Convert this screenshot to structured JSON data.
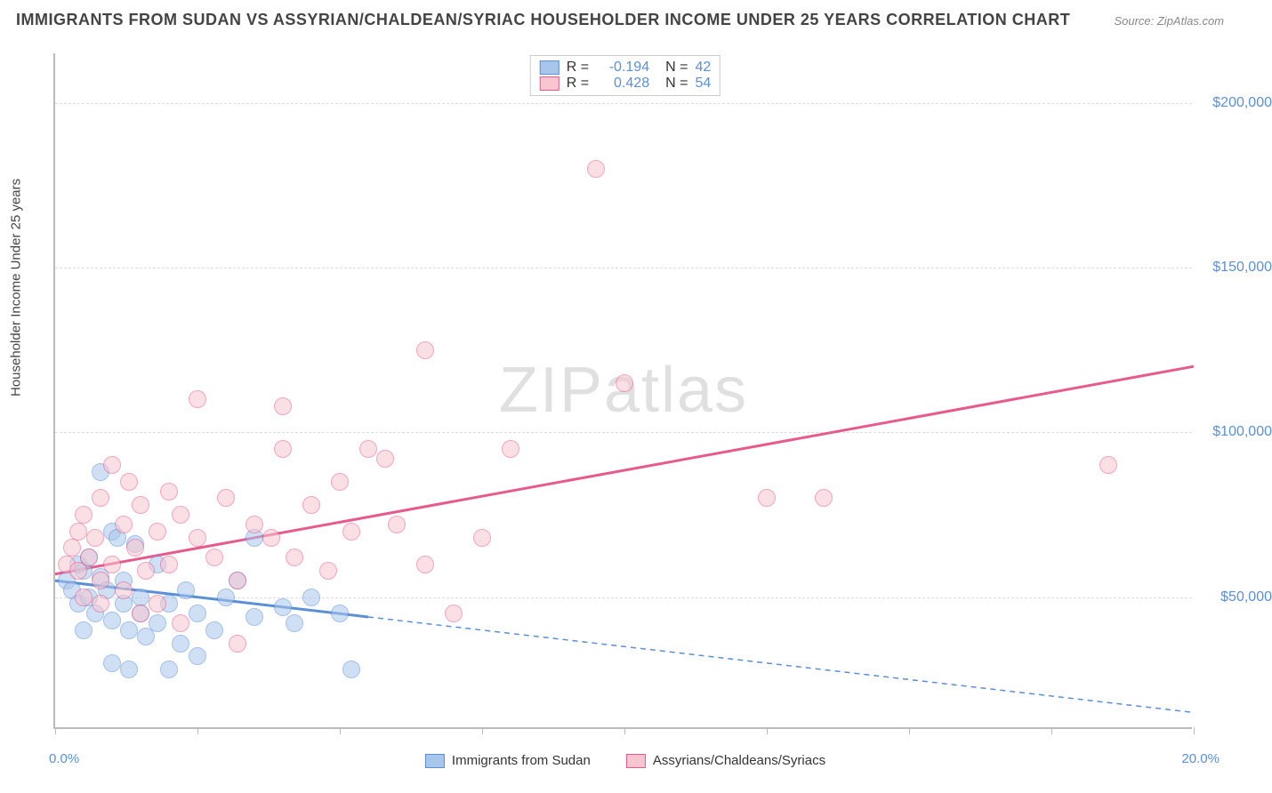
{
  "title": "IMMIGRANTS FROM SUDAN VS ASSYRIAN/CHALDEAN/SYRIAC HOUSEHOLDER INCOME UNDER 25 YEARS CORRELATION CHART",
  "source": "Source: ZipAtlas.com",
  "watermark": "ZIPatlas",
  "y_axis_label": "Householder Income Under 25 years",
  "x_left": "0.0%",
  "x_right": "20.0%",
  "colors": {
    "blue_fill": "#a8c6ec",
    "blue_stroke": "#5b8fd6",
    "pink_fill": "#f7c6d0",
    "pink_stroke": "#e75a8c",
    "grid": "#dddddd",
    "axis": "#bbbbbb",
    "value_text": "#5b8fd6"
  },
  "chart": {
    "type": "scatter",
    "xlim": [
      0,
      20
    ],
    "ylim": [
      10000,
      215000
    ],
    "y_ticks": [
      50000,
      100000,
      150000,
      200000
    ],
    "y_tick_labels": [
      "$50,000",
      "$100,000",
      "$150,000",
      "$200,000"
    ],
    "x_ticks": [
      0,
      2.5,
      5,
      7.5,
      10,
      12.5,
      15,
      17.5,
      20
    ],
    "point_radius": 10,
    "point_opacity": 0.55
  },
  "legend_top": [
    {
      "r_label": "R =",
      "r": "-0.194",
      "n_label": "N =",
      "n": "42"
    },
    {
      "r_label": "R =",
      "r": "0.428",
      "n_label": "N =",
      "n": "54"
    }
  ],
  "legend_bottom": [
    {
      "label": "Immigrants from Sudan"
    },
    {
      "label": "Assyrians/Chaldeans/Syriacs"
    }
  ],
  "series": [
    {
      "name": "sudan",
      "color_fill": "#a8c6ec",
      "color_stroke": "#5b8fd6",
      "trend": {
        "x1": 0,
        "y1": 55000,
        "x2": 5.5,
        "y2": 44000,
        "dash_x2": 20,
        "dash_y2": 15000,
        "width": 3
      },
      "points": [
        [
          0.2,
          55000
        ],
        [
          0.3,
          52000
        ],
        [
          0.4,
          60000
        ],
        [
          0.4,
          48000
        ],
        [
          0.5,
          58000
        ],
        [
          0.6,
          50000
        ],
        [
          0.6,
          62000
        ],
        [
          0.7,
          45000
        ],
        [
          0.8,
          88000
        ],
        [
          0.8,
          56000
        ],
        [
          0.9,
          52000
        ],
        [
          1.0,
          70000
        ],
        [
          1.0,
          43000
        ],
        [
          1.1,
          68000
        ],
        [
          1.2,
          48000
        ],
        [
          1.2,
          55000
        ],
        [
          1.3,
          40000
        ],
        [
          1.4,
          66000
        ],
        [
          1.5,
          50000
        ],
        [
          1.5,
          45000
        ],
        [
          1.6,
          38000
        ],
        [
          1.8,
          60000
        ],
        [
          1.8,
          42000
        ],
        [
          2.0,
          48000
        ],
        [
          2.0,
          28000
        ],
        [
          2.2,
          36000
        ],
        [
          2.3,
          52000
        ],
        [
          2.5,
          45000
        ],
        [
          2.5,
          32000
        ],
        [
          2.8,
          40000
        ],
        [
          3.0,
          50000
        ],
        [
          3.2,
          55000
        ],
        [
          3.5,
          44000
        ],
        [
          3.5,
          68000
        ],
        [
          4.0,
          47000
        ],
        [
          4.2,
          42000
        ],
        [
          4.5,
          50000
        ],
        [
          5.0,
          45000
        ],
        [
          5.2,
          28000
        ],
        [
          1.0,
          30000
        ],
        [
          1.3,
          28000
        ],
        [
          0.5,
          40000
        ]
      ]
    },
    {
      "name": "assyrian",
      "color_fill": "#f7c6d0",
      "color_stroke": "#e75a8c",
      "trend": {
        "x1": 0,
        "y1": 57000,
        "x2": 20,
        "y2": 120000,
        "width": 3
      },
      "points": [
        [
          0.2,
          60000
        ],
        [
          0.3,
          65000
        ],
        [
          0.4,
          70000
        ],
        [
          0.4,
          58000
        ],
        [
          0.5,
          75000
        ],
        [
          0.6,
          62000
        ],
        [
          0.7,
          68000
        ],
        [
          0.8,
          80000
        ],
        [
          0.8,
          55000
        ],
        [
          1.0,
          90000
        ],
        [
          1.0,
          60000
        ],
        [
          1.2,
          72000
        ],
        [
          1.3,
          85000
        ],
        [
          1.4,
          65000
        ],
        [
          1.5,
          78000
        ],
        [
          1.6,
          58000
        ],
        [
          1.8,
          70000
        ],
        [
          2.0,
          82000
        ],
        [
          2.0,
          60000
        ],
        [
          2.2,
          75000
        ],
        [
          2.5,
          68000
        ],
        [
          2.8,
          62000
        ],
        [
          3.0,
          80000
        ],
        [
          3.2,
          55000
        ],
        [
          3.5,
          72000
        ],
        [
          3.8,
          68000
        ],
        [
          4.0,
          95000
        ],
        [
          4.2,
          62000
        ],
        [
          4.5,
          78000
        ],
        [
          4.8,
          58000
        ],
        [
          5.0,
          85000
        ],
        [
          5.2,
          70000
        ],
        [
          5.5,
          95000
        ],
        [
          5.8,
          92000
        ],
        [
          6.0,
          72000
        ],
        [
          6.5,
          125000
        ],
        [
          7.0,
          45000
        ],
        [
          7.5,
          68000
        ],
        [
          8.0,
          95000
        ],
        [
          9.5,
          180000
        ],
        [
          10.0,
          115000
        ],
        [
          2.5,
          110000
        ],
        [
          3.2,
          36000
        ],
        [
          1.8,
          48000
        ],
        [
          2.2,
          42000
        ],
        [
          12.5,
          80000
        ],
        [
          13.5,
          80000
        ],
        [
          18.5,
          90000
        ],
        [
          4.0,
          108000
        ],
        [
          0.5,
          50000
        ],
        [
          0.8,
          48000
        ],
        [
          1.2,
          52000
        ],
        [
          1.5,
          45000
        ],
        [
          6.5,
          60000
        ]
      ]
    }
  ]
}
